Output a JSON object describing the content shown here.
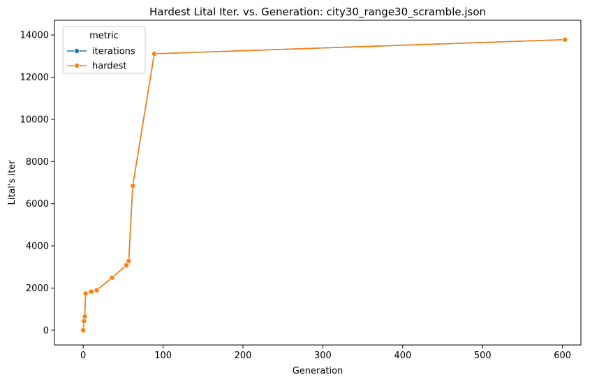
{
  "chart_data": {
    "type": "line",
    "title": "Hardest Lital Iter. vs. Generation: city30_range30_scramble.json",
    "xlabel": "Generation",
    "ylabel": "Lital's iter",
    "xlim": [
      -36,
      623
    ],
    "ylim": [
      -700,
      14700
    ],
    "xticks": [
      0,
      100,
      200,
      300,
      400,
      500,
      600
    ],
    "yticks": [
      0,
      2000,
      4000,
      6000,
      8000,
      10000,
      12000,
      14000
    ],
    "grid": false,
    "legend": {
      "title": "metric",
      "placement": "top-left",
      "entries": [
        {
          "name": "iterations",
          "color": "#1f77b4"
        },
        {
          "name": "hardest",
          "color": "#ff7f0e"
        }
      ]
    },
    "series": [
      {
        "name": "iterations",
        "color": "#1f77b4",
        "x": [
          0,
          1,
          2,
          3,
          10,
          17,
          36,
          54,
          57,
          62,
          89,
          603
        ],
        "y": [
          0,
          430,
          650,
          1740,
          1830,
          1900,
          2490,
          3080,
          3280,
          6850,
          13110,
          13780
        ]
      },
      {
        "name": "hardest",
        "color": "#ff7f0e",
        "x": [
          0,
          1,
          2,
          3,
          10,
          17,
          36,
          54,
          57,
          62,
          89,
          603
        ],
        "y": [
          0,
          430,
          650,
          1740,
          1830,
          1900,
          2490,
          3080,
          3280,
          6850,
          13110,
          13780
        ]
      }
    ]
  }
}
